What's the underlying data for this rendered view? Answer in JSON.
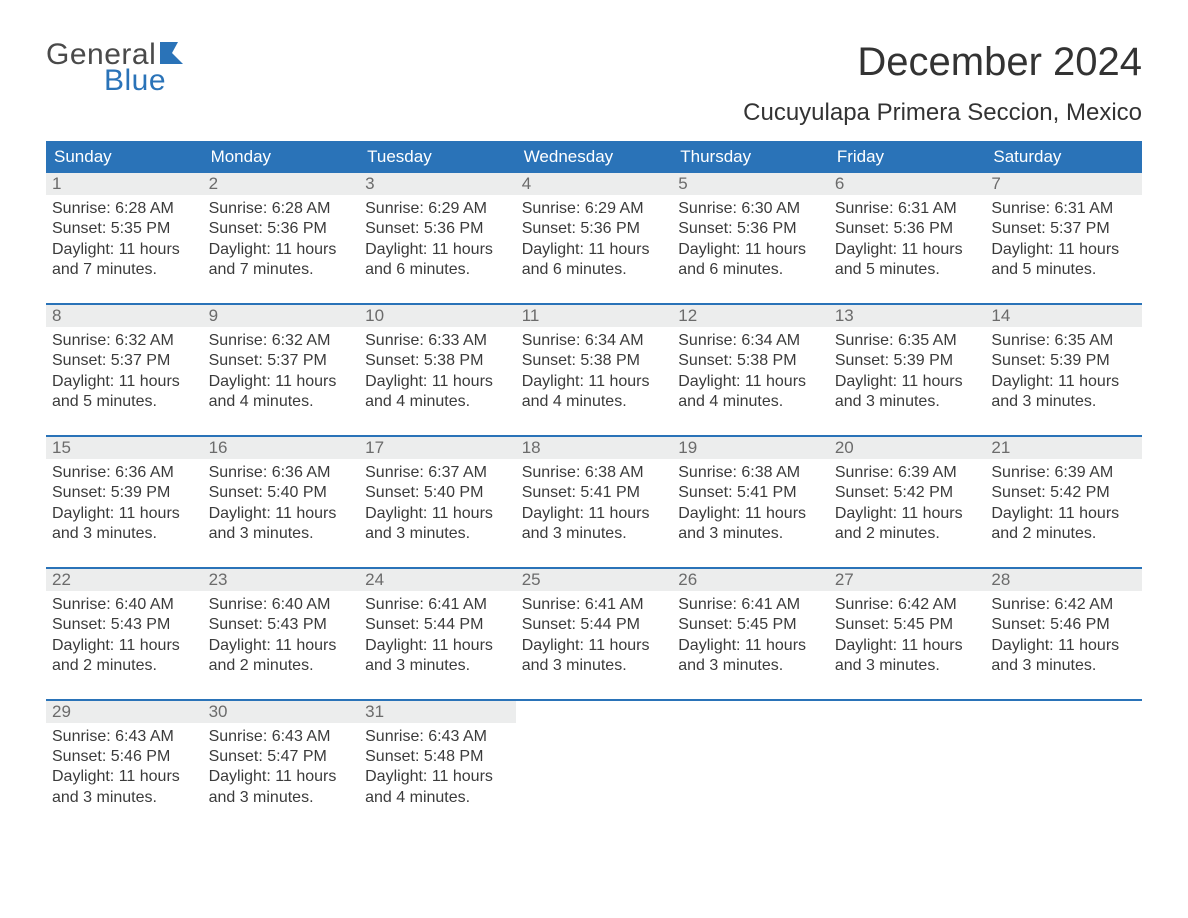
{
  "brand": {
    "general": "General",
    "blue": "Blue",
    "flag_color": "#2a73b8"
  },
  "title": "December 2024",
  "location": "Cucuyulapa Primera Seccion, Mexico",
  "colors": {
    "header_bg": "#2a73b8",
    "header_text": "#ffffff",
    "daynum_bg": "#eceded",
    "daynum_text": "#6b6b6b",
    "body_text": "#3b3b3b",
    "row_border": "#2a73b8"
  },
  "weekdays": [
    "Sunday",
    "Monday",
    "Tuesday",
    "Wednesday",
    "Thursday",
    "Friday",
    "Saturday"
  ],
  "days": [
    {
      "n": "1",
      "sr": "6:28 AM",
      "ss": "5:35 PM",
      "dl": "11 hours and 7 minutes."
    },
    {
      "n": "2",
      "sr": "6:28 AM",
      "ss": "5:36 PM",
      "dl": "11 hours and 7 minutes."
    },
    {
      "n": "3",
      "sr": "6:29 AM",
      "ss": "5:36 PM",
      "dl": "11 hours and 6 minutes."
    },
    {
      "n": "4",
      "sr": "6:29 AM",
      "ss": "5:36 PM",
      "dl": "11 hours and 6 minutes."
    },
    {
      "n": "5",
      "sr": "6:30 AM",
      "ss": "5:36 PM",
      "dl": "11 hours and 6 minutes."
    },
    {
      "n": "6",
      "sr": "6:31 AM",
      "ss": "5:36 PM",
      "dl": "11 hours and 5 minutes."
    },
    {
      "n": "7",
      "sr": "6:31 AM",
      "ss": "5:37 PM",
      "dl": "11 hours and 5 minutes."
    },
    {
      "n": "8",
      "sr": "6:32 AM",
      "ss": "5:37 PM",
      "dl": "11 hours and 5 minutes."
    },
    {
      "n": "9",
      "sr": "6:32 AM",
      "ss": "5:37 PM",
      "dl": "11 hours and 4 minutes."
    },
    {
      "n": "10",
      "sr": "6:33 AM",
      "ss": "5:38 PM",
      "dl": "11 hours and 4 minutes."
    },
    {
      "n": "11",
      "sr": "6:34 AM",
      "ss": "5:38 PM",
      "dl": "11 hours and 4 minutes."
    },
    {
      "n": "12",
      "sr": "6:34 AM",
      "ss": "5:38 PM",
      "dl": "11 hours and 4 minutes."
    },
    {
      "n": "13",
      "sr": "6:35 AM",
      "ss": "5:39 PM",
      "dl": "11 hours and 3 minutes."
    },
    {
      "n": "14",
      "sr": "6:35 AM",
      "ss": "5:39 PM",
      "dl": "11 hours and 3 minutes."
    },
    {
      "n": "15",
      "sr": "6:36 AM",
      "ss": "5:39 PM",
      "dl": "11 hours and 3 minutes."
    },
    {
      "n": "16",
      "sr": "6:36 AM",
      "ss": "5:40 PM",
      "dl": "11 hours and 3 minutes."
    },
    {
      "n": "17",
      "sr": "6:37 AM",
      "ss": "5:40 PM",
      "dl": "11 hours and 3 minutes."
    },
    {
      "n": "18",
      "sr": "6:38 AM",
      "ss": "5:41 PM",
      "dl": "11 hours and 3 minutes."
    },
    {
      "n": "19",
      "sr": "6:38 AM",
      "ss": "5:41 PM",
      "dl": "11 hours and 3 minutes."
    },
    {
      "n": "20",
      "sr": "6:39 AM",
      "ss": "5:42 PM",
      "dl": "11 hours and 2 minutes."
    },
    {
      "n": "21",
      "sr": "6:39 AM",
      "ss": "5:42 PM",
      "dl": "11 hours and 2 minutes."
    },
    {
      "n": "22",
      "sr": "6:40 AM",
      "ss": "5:43 PM",
      "dl": "11 hours and 2 minutes."
    },
    {
      "n": "23",
      "sr": "6:40 AM",
      "ss": "5:43 PM",
      "dl": "11 hours and 2 minutes."
    },
    {
      "n": "24",
      "sr": "6:41 AM",
      "ss": "5:44 PM",
      "dl": "11 hours and 3 minutes."
    },
    {
      "n": "25",
      "sr": "6:41 AM",
      "ss": "5:44 PM",
      "dl": "11 hours and 3 minutes."
    },
    {
      "n": "26",
      "sr": "6:41 AM",
      "ss": "5:45 PM",
      "dl": "11 hours and 3 minutes."
    },
    {
      "n": "27",
      "sr": "6:42 AM",
      "ss": "5:45 PM",
      "dl": "11 hours and 3 minutes."
    },
    {
      "n": "28",
      "sr": "6:42 AM",
      "ss": "5:46 PM",
      "dl": "11 hours and 3 minutes."
    },
    {
      "n": "29",
      "sr": "6:43 AM",
      "ss": "5:46 PM",
      "dl": "11 hours and 3 minutes."
    },
    {
      "n": "30",
      "sr": "6:43 AM",
      "ss": "5:47 PM",
      "dl": "11 hours and 3 minutes."
    },
    {
      "n": "31",
      "sr": "6:43 AM",
      "ss": "5:48 PM",
      "dl": "11 hours and 4 minutes."
    }
  ],
  "labels": {
    "sunrise": "Sunrise: ",
    "sunset": "Sunset: ",
    "daylight": "Daylight: "
  }
}
